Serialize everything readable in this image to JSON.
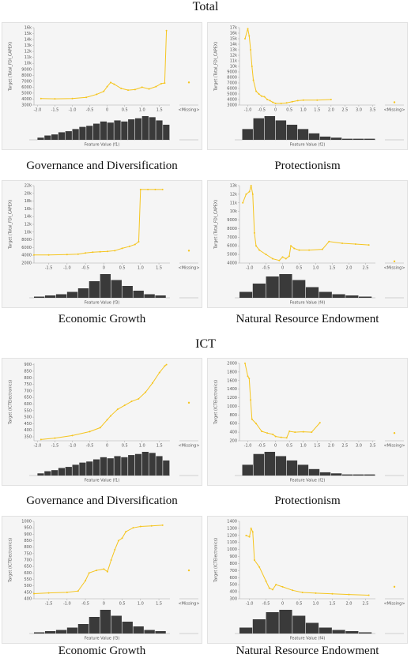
{
  "headings": [
    "Total",
    "ICT"
  ],
  "chart_data": [
    {
      "type": "line",
      "title": "Governance and Diversification",
      "x_label": "Feature Value (f1)",
      "y_label": "Target (Total_FDI_CAPEX)",
      "color": "#f5c51f",
      "x": [
        -1.9,
        -1.5,
        -1.0,
        -0.6,
        -0.3,
        -0.1,
        0,
        0.1,
        0.2,
        0.4,
        0.6,
        0.8,
        1.0,
        1.2,
        1.4,
        1.55,
        1.65,
        1.7
      ],
      "values": [
        4100,
        4050,
        4100,
        4300,
        4800,
        5300,
        6100,
        6800,
        6500,
        5800,
        5500,
        5600,
        6000,
        5700,
        6100,
        6600,
        6700,
        15500
      ],
      "missing_label": "<Missing>",
      "missing_value": 6800,
      "xlim": [
        -2.1,
        1.8
      ],
      "xticks": [
        {
          "value": -2,
          "label": "-2.0"
        },
        -1.5,
        {
          "value": -1,
          "label": "-1.0"
        },
        -0.5,
        0,
        0.5,
        {
          "value": 1,
          "label": "1.0"
        },
        1.5
      ],
      "ylim": [
        3000,
        16000
      ],
      "yticks": [
        3000,
        4000,
        5000,
        6000,
        7000,
        8000,
        9000,
        {
          "value": 10000,
          "label": "10k"
        },
        {
          "value": 11000,
          "label": "11k"
        },
        {
          "value": 12000,
          "label": "12k"
        },
        {
          "value": 13000,
          "label": "13k"
        },
        {
          "value": 14000,
          "label": "14k"
        },
        {
          "value": 15000,
          "label": "15k"
        },
        {
          "value": 16000,
          "label": "16k"
        }
      ],
      "hist": {
        "bins": [
          -2.0,
          -1.8,
          -1.6,
          -1.4,
          -1.2,
          -1.0,
          -0.8,
          -0.6,
          -0.4,
          -0.2,
          0,
          0.2,
          0.4,
          0.6,
          0.8,
          1.0,
          1.2,
          1.4,
          1.6,
          1.8
        ],
        "counts": [
          2,
          4,
          5,
          7,
          8,
          10,
          12,
          13,
          15,
          17,
          16,
          18,
          17,
          19,
          20,
          22,
          21,
          18,
          14
        ]
      }
    },
    {
      "type": "line",
      "title": "Protectionism",
      "x_label": "Feature Value (f2)",
      "y_label": "Target (Total_FDI_CAPEX)",
      "color": "#f5c51f",
      "x": [
        -1.1,
        -1.0,
        -0.95,
        -0.9,
        -0.85,
        -0.8,
        -0.7,
        -0.6,
        -0.5,
        -0.4,
        -0.3,
        -0.2,
        -0.1,
        0,
        0.2,
        0.4,
        0.6,
        0.8,
        1.0,
        1.5,
        2.0
      ],
      "values": [
        15000,
        16800,
        15500,
        13000,
        10000,
        7500,
        5500,
        5000,
        4600,
        4500,
        4000,
        3800,
        3500,
        3300,
        3300,
        3400,
        3600,
        3800,
        3900,
        3900,
        4000
      ],
      "missing_label": "<Missing>",
      "missing_value": 3500,
      "xlim": [
        -1.3,
        3.6
      ],
      "xticks": [
        {
          "value": -1,
          "label": "-1.0"
        },
        -0.5,
        0,
        0.5,
        {
          "value": 1,
          "label": "1.0"
        },
        1.5,
        {
          "value": 2,
          "label": "2.0"
        },
        2.5,
        {
          "value": 3,
          "label": "3.0"
        },
        3.5
      ],
      "ylim": [
        3000,
        17000
      ],
      "yticks": [
        3000,
        4000,
        5000,
        6000,
        7000,
        8000,
        9000,
        {
          "value": 10000,
          "label": "10k"
        },
        {
          "value": 11000,
          "label": "11k"
        },
        {
          "value": 12000,
          "label": "12k"
        },
        {
          "value": 13000,
          "label": "13k"
        },
        {
          "value": 14000,
          "label": "14k"
        },
        {
          "value": 15000,
          "label": "15k"
        },
        {
          "value": 16000,
          "label": "16k"
        },
        {
          "value": 17000,
          "label": "17k"
        }
      ],
      "hist": {
        "bins": [
          -1.2,
          -0.8,
          -0.4,
          0,
          0.4,
          0.8,
          1.2,
          1.6,
          2.0,
          2.4,
          2.8,
          3.2,
          3.6
        ],
        "counts": [
          10,
          20,
          22,
          18,
          14,
          10,
          6,
          3,
          2,
          1,
          1,
          1
        ]
      }
    },
    {
      "type": "line",
      "title": "Economic Growth",
      "x_label": "Feature Value (f3)",
      "y_label": "Target (Total_FDI_CAPEX)",
      "color": "#f5c51f",
      "x": [
        -1.9,
        -1.5,
        -1.0,
        -0.7,
        -0.5,
        -0.3,
        -0.1,
        0.1,
        0.3,
        0.5,
        0.7,
        0.85,
        0.95,
        1.0,
        1.2,
        1.4,
        1.6
      ],
      "values": [
        4100,
        4100,
        4200,
        4300,
        4600,
        4800,
        4900,
        5000,
        5200,
        5800,
        6300,
        6800,
        7500,
        21000,
        21000,
        21000,
        21000
      ],
      "missing_label": "<Missing>",
      "missing_value": 5200,
      "xlim": [
        -1.9,
        1.8
      ],
      "xticks": [
        -1.5,
        {
          "value": -1,
          "label": "-1.0"
        },
        -0.5,
        0,
        0.5,
        {
          "value": 1,
          "label": "1.0"
        },
        1.5
      ],
      "ylim": [
        2000,
        22000
      ],
      "yticks": [
        2000,
        4000,
        6000,
        8000,
        {
          "value": 10000,
          "label": "10k"
        },
        {
          "value": 12000,
          "label": "12k"
        },
        {
          "value": 14000,
          "label": "14k"
        },
        {
          "value": 16000,
          "label": "16k"
        },
        {
          "value": 18000,
          "label": "18k"
        },
        {
          "value": 20000,
          "label": "20k"
        },
        {
          "value": 22000,
          "label": "22k"
        }
      ],
      "hist": {
        "bins": [
          -1.9,
          -1.6,
          -1.3,
          -1.0,
          -0.7,
          -0.4,
          -0.1,
          0.2,
          0.5,
          0.8,
          1.1,
          1.4,
          1.7
        ],
        "counts": [
          1,
          2,
          3,
          5,
          8,
          14,
          20,
          15,
          10,
          6,
          3,
          2
        ]
      }
    },
    {
      "type": "line",
      "title": "Natural Resource Endowment",
      "x_label": "Feature Value (f4)",
      "y_label": "Target (Total_FDI_CAPEX)",
      "color": "#f5c51f",
      "x": [
        -1.2,
        -1.1,
        -1.0,
        -0.95,
        -0.9,
        -0.85,
        -0.8,
        -0.7,
        -0.5,
        -0.3,
        -0.1,
        0,
        0.1,
        0.2,
        0.25,
        0.35,
        0.5,
        0.8,
        1.2,
        1.4,
        1.8,
        2.2,
        2.6
      ],
      "values": [
        11000,
        12000,
        12300,
        13000,
        12000,
        7500,
        6000,
        5500,
        5000,
        4500,
        4300,
        4700,
        4500,
        4800,
        6000,
        5700,
        5500,
        5500,
        5600,
        6500,
        6300,
        6200,
        6100
      ],
      "missing_label": "<Missing>",
      "missing_value": 4200,
      "xlim": [
        -1.3,
        2.8
      ],
      "xticks": [
        {
          "value": -1,
          "label": "-1.0"
        },
        -0.5,
        0,
        0.5,
        {
          "value": 1,
          "label": "1.0"
        },
        1.5,
        {
          "value": 2,
          "label": "2.0"
        },
        2.5
      ],
      "ylim": [
        4000,
        13000
      ],
      "yticks": [
        4000,
        5000,
        6000,
        7000,
        8000,
        9000,
        {
          "value": 10000,
          "label": "10k"
        },
        {
          "value": 11000,
          "label": "11k"
        },
        {
          "value": 12000,
          "label": "12k"
        },
        {
          "value": 13000,
          "label": "13k"
        }
      ],
      "hist": {
        "bins": [
          -1.3,
          -0.9,
          -0.5,
          -0.1,
          0.3,
          0.7,
          1.1,
          1.5,
          1.9,
          2.3,
          2.7
        ],
        "counts": [
          5,
          12,
          18,
          20,
          15,
          9,
          5,
          3,
          2,
          1
        ]
      }
    },
    {
      "type": "line",
      "title": "Governance and Diversification",
      "x_label": "Feature Value (f1)",
      "y_label": "Target (ICTElectronics)",
      "color": "#f5c51f",
      "x": [
        -1.9,
        -1.5,
        -1.0,
        -0.5,
        -0.2,
        0,
        0.1,
        0.3,
        0.5,
        0.7,
        0.9,
        1.1,
        1.3,
        1.5,
        1.65,
        1.7
      ],
      "values": [
        330,
        340,
        360,
        390,
        420,
        480,
        510,
        560,
        590,
        620,
        640,
        690,
        760,
        840,
        890,
        900
      ],
      "missing_label": "<Missing>",
      "missing_value": 610,
      "xlim": [
        -2.1,
        1.8
      ],
      "xticks": [
        {
          "value": -2,
          "label": "-2.0"
        },
        -1.5,
        {
          "value": -1,
          "label": "-1.0"
        },
        -0.5,
        0,
        0.5,
        {
          "value": 1,
          "label": "1.0"
        },
        1.5
      ],
      "ylim": [
        320,
        910
      ],
      "yticks": [
        350,
        400,
        450,
        500,
        550,
        600,
        650,
        700,
        750,
        800,
        850,
        900
      ],
      "hist": {
        "bins": [
          -2.0,
          -1.8,
          -1.6,
          -1.4,
          -1.2,
          -1.0,
          -0.8,
          -0.6,
          -0.4,
          -0.2,
          0,
          0.2,
          0.4,
          0.6,
          0.8,
          1.0,
          1.2,
          1.4,
          1.6,
          1.8
        ],
        "counts": [
          2,
          4,
          5,
          7,
          8,
          10,
          12,
          13,
          15,
          17,
          16,
          18,
          17,
          19,
          20,
          22,
          21,
          18,
          14
        ]
      }
    },
    {
      "type": "line",
      "title": "Protectionism",
      "x_label": "Feature Value (f2)",
      "y_label": "Target (ICTElectronics)",
      "color": "#f5c51f",
      "x": [
        -1.1,
        -1.0,
        -0.95,
        -0.9,
        -0.85,
        -0.7,
        -0.5,
        -0.3,
        -0.1,
        0,
        0.2,
        0.4,
        0.5,
        0.7,
        1.0,
        1.3,
        1.6
      ],
      "values": [
        2000,
        1700,
        1650,
        1150,
        700,
        600,
        420,
        380,
        350,
        300,
        280,
        270,
        420,
        400,
        410,
        400,
        620
      ],
      "missing_label": "<Missing>",
      "missing_value": 380,
      "xlim": [
        -1.3,
        3.6
      ],
      "xticks": [
        {
          "value": -1,
          "label": "-1.0"
        },
        -0.5,
        0,
        0.5,
        {
          "value": 1,
          "label": "1.0"
        },
        1.5,
        {
          "value": 2,
          "label": "2.0"
        },
        2.5,
        {
          "value": 3,
          "label": "3.0"
        },
        3.5
      ],
      "ylim": [
        200,
        2000
      ],
      "yticks": [
        200,
        400,
        600,
        800,
        1000,
        1200,
        1400,
        1600,
        1800,
        2000
      ],
      "hist": {
        "bins": [
          -1.2,
          -0.8,
          -0.4,
          0,
          0.4,
          0.8,
          1.2,
          1.6,
          2.0,
          2.4,
          2.8,
          3.2,
          3.6
        ],
        "counts": [
          10,
          20,
          22,
          18,
          14,
          10,
          6,
          3,
          2,
          1,
          1,
          1
        ]
      }
    },
    {
      "type": "line",
      "title": "Economic Growth",
      "x_label": "Feature Value (f3)",
      "y_label": "Target (ICTElectronics)",
      "color": "#f5c51f",
      "x": [
        -1.9,
        -1.5,
        -1.0,
        -0.7,
        -0.5,
        -0.4,
        -0.2,
        0,
        0.1,
        0.2,
        0.3,
        0.4,
        0.5,
        0.6,
        0.8,
        1.0,
        1.3,
        1.6
      ],
      "values": [
        440,
        445,
        450,
        460,
        540,
        600,
        620,
        630,
        610,
        700,
        780,
        850,
        870,
        920,
        950,
        960,
        965,
        970
      ],
      "missing_label": "<Missing>",
      "missing_value": 620,
      "xlim": [
        -1.9,
        1.8
      ],
      "xticks": [
        -1.5,
        {
          "value": -1,
          "label": "-1.0"
        },
        -0.5,
        0,
        0.5,
        {
          "value": 1,
          "label": "1.0"
        },
        1.5
      ],
      "ylim": [
        400,
        1000
      ],
      "yticks": [
        400,
        450,
        500,
        550,
        600,
        650,
        700,
        750,
        800,
        850,
        900,
        950,
        1000
      ],
      "hist": {
        "bins": [
          -1.9,
          -1.6,
          -1.3,
          -1.0,
          -0.7,
          -0.4,
          -0.1,
          0.2,
          0.5,
          0.8,
          1.1,
          1.4,
          1.7
        ],
        "counts": [
          1,
          2,
          3,
          5,
          8,
          14,
          20,
          15,
          10,
          6,
          3,
          2
        ]
      }
    },
    {
      "type": "line",
      "title": "Natural Resource Endowment",
      "x_label": "Feature Value (f4)",
      "y_label": "Target (ICTElectronics)",
      "color": "#f5c51f",
      "x": [
        -1.1,
        -1.0,
        -0.95,
        -0.9,
        -0.85,
        -0.7,
        -0.5,
        -0.4,
        -0.3,
        -0.2,
        0,
        0.3,
        0.6,
        1.0,
        1.5,
        2.0,
        2.6
      ],
      "values": [
        1200,
        1180,
        1300,
        1250,
        850,
        750,
        550,
        450,
        430,
        500,
        470,
        420,
        390,
        380,
        370,
        360,
        350
      ],
      "missing_label": "<Missing>",
      "missing_value": 470,
      "xlim": [
        -1.3,
        2.8
      ],
      "xticks": [
        {
          "value": -1,
          "label": "-1.0"
        },
        -0.5,
        0,
        0.5,
        {
          "value": 1,
          "label": "1.0"
        },
        1.5,
        {
          "value": 2,
          "label": "2.0"
        },
        2.5
      ],
      "ylim": [
        300,
        1400
      ],
      "yticks": [
        300,
        400,
        500,
        600,
        700,
        800,
        900,
        1000,
        1100,
        1200,
        1300,
        1400
      ],
      "hist": {
        "bins": [
          -1.3,
          -0.9,
          -0.5,
          -0.1,
          0.3,
          0.7,
          1.1,
          1.5,
          1.9,
          2.3,
          2.7
        ],
        "counts": [
          5,
          12,
          18,
          20,
          15,
          9,
          5,
          3,
          2,
          1
        ]
      }
    }
  ]
}
